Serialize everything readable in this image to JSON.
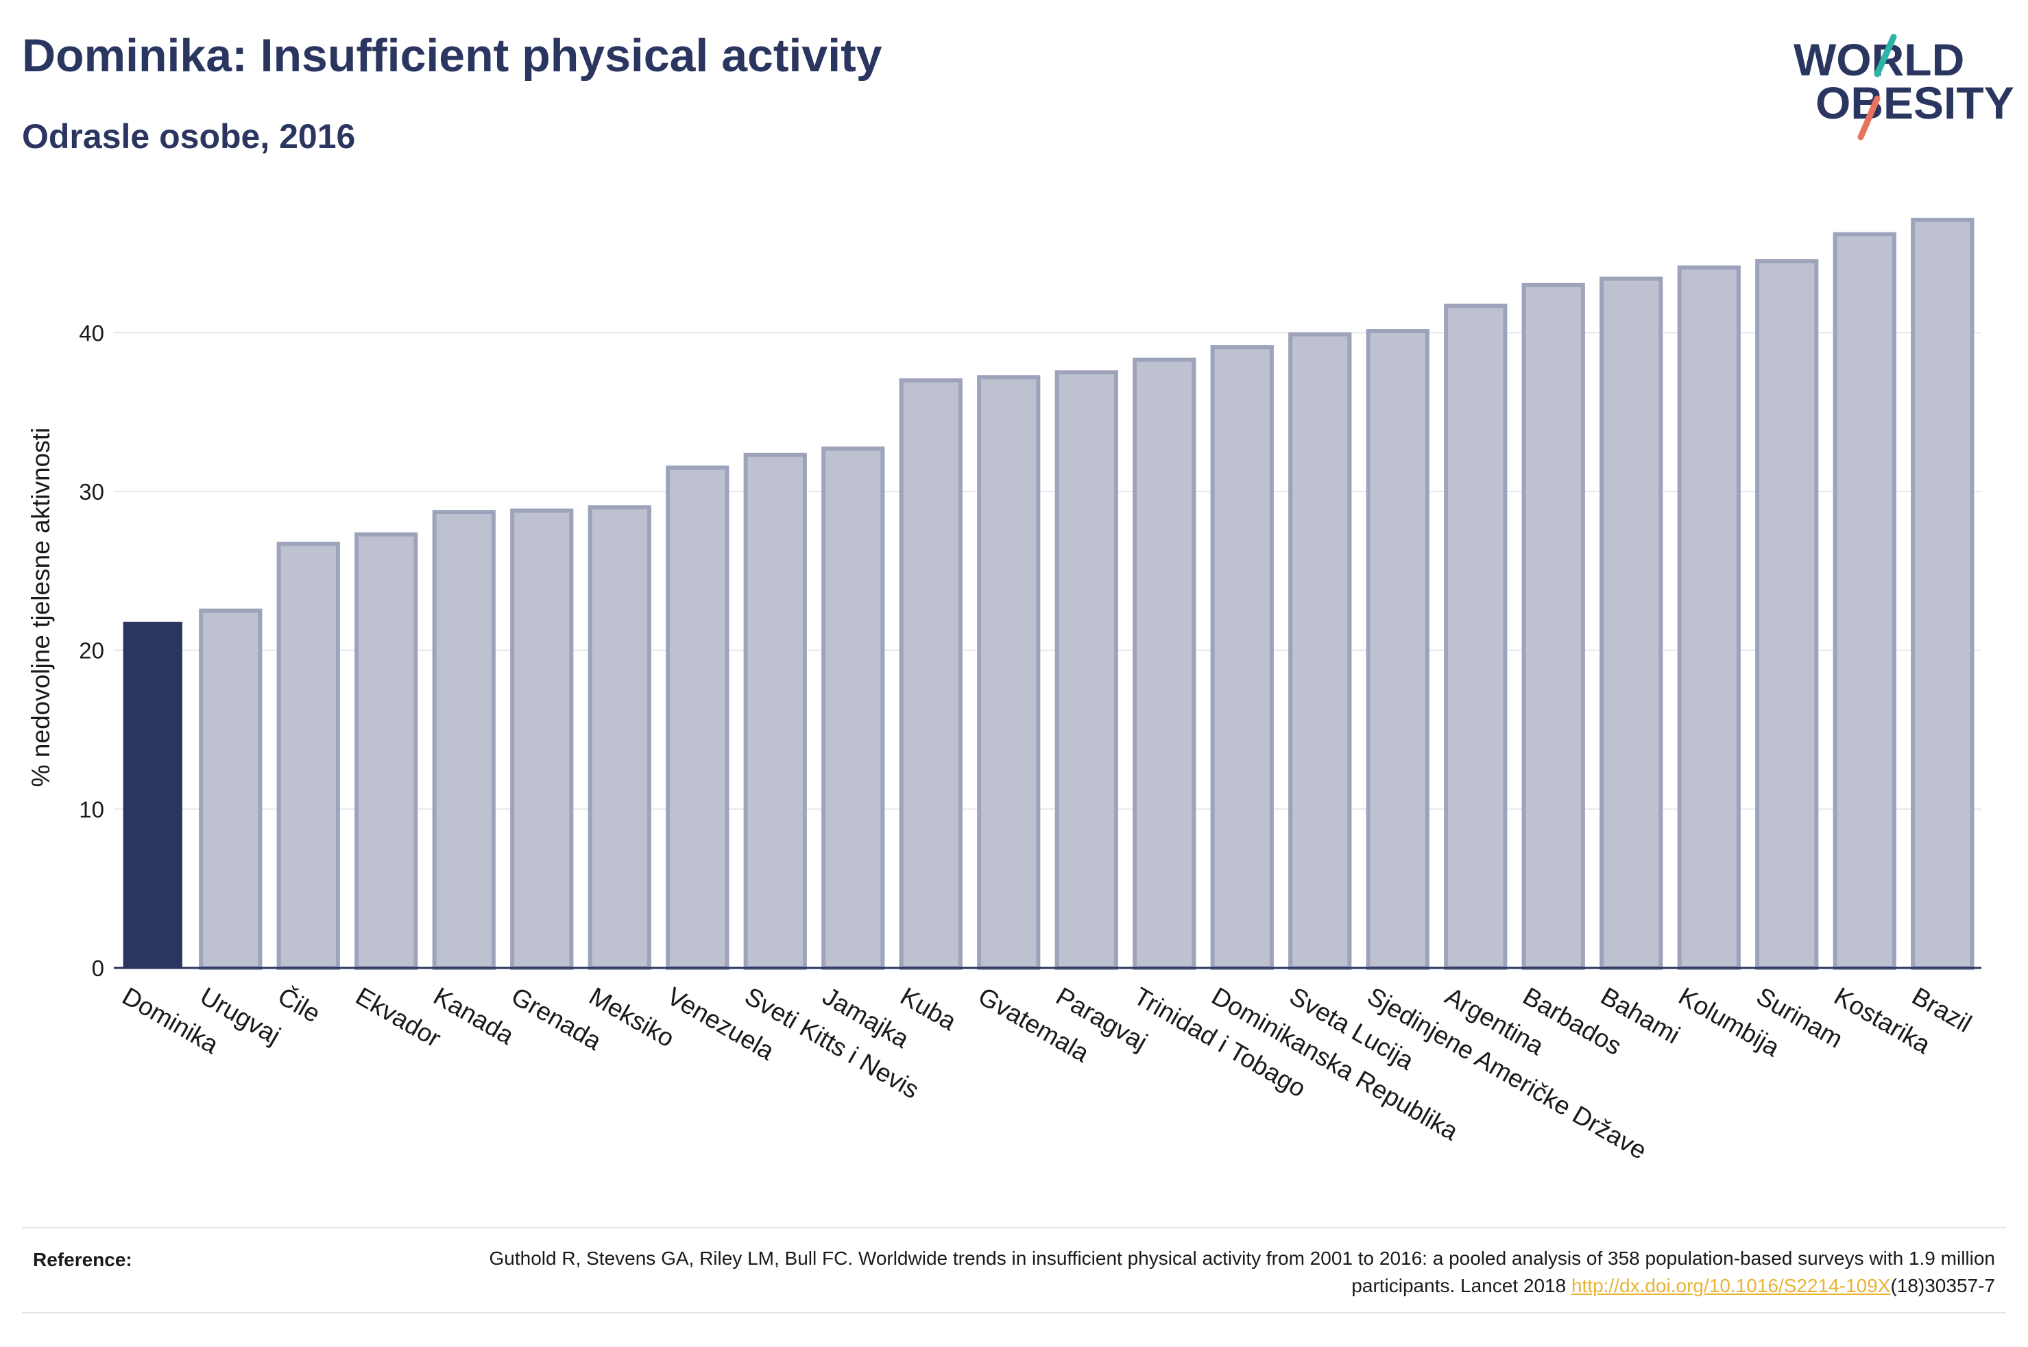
{
  "header": {
    "title": "Dominika: Insufficient physical activity",
    "subtitle": "Odrasle osobe, 2016"
  },
  "logo": {
    "line1": "WORLD",
    "line2": "OBESITY",
    "accent_teal": "#2bb5a6",
    "accent_coral": "#e8735e"
  },
  "chart_data": {
    "type": "bar",
    "ylabel": "% nedovoljne tjelesne aktivnosti",
    "ylim": [
      0,
      48
    ],
    "yticks": [
      0,
      10,
      20,
      30,
      40
    ],
    "grid": true,
    "highlight": "Dominika",
    "colors": {
      "highlight": "#2a3560",
      "bar_fill": "#bec1d0",
      "bar_edge": "#9da3bb",
      "axis": "#2a3560"
    },
    "categories": [
      "Dominika",
      "Urugvaj",
      "Čile",
      "Ekvador",
      "Kanada",
      "Grenada",
      "Meksiko",
      "Venezuela",
      "Sveti Kitts i Nevis",
      "Jamajka",
      "Kuba",
      "Gvatemala",
      "Paragvaj",
      "Trinidad i Tobago",
      "Dominikanska Republika",
      "Sveta Lucija",
      "Sjedinjene Američke Države",
      "Argentina",
      "Barbados",
      "Bahami",
      "Kolumbija",
      "Surinam",
      "Kostarika",
      "Brazil"
    ],
    "values": [
      21.8,
      22.5,
      26.7,
      27.3,
      28.7,
      28.8,
      29.0,
      31.5,
      32.3,
      32.7,
      37.0,
      37.2,
      37.5,
      38.3,
      39.1,
      39.9,
      40.1,
      41.7,
      43.0,
      43.4,
      44.1,
      44.5,
      46.2,
      47.1
    ]
  },
  "footer": {
    "reference_label": "Reference:",
    "reference_text": "Guthold R, Stevens GA, Riley LM, Bull FC. Worldwide trends in insufficient physical activity from 2001 to 2016: a pooled analysis of 358 population-based surveys with 1.9 million participants. Lancet 2018",
    "reference_link": "http://dx.doi.org/10.1016/S2214-109X",
    "reference_suffix": "(18)30357-7"
  }
}
